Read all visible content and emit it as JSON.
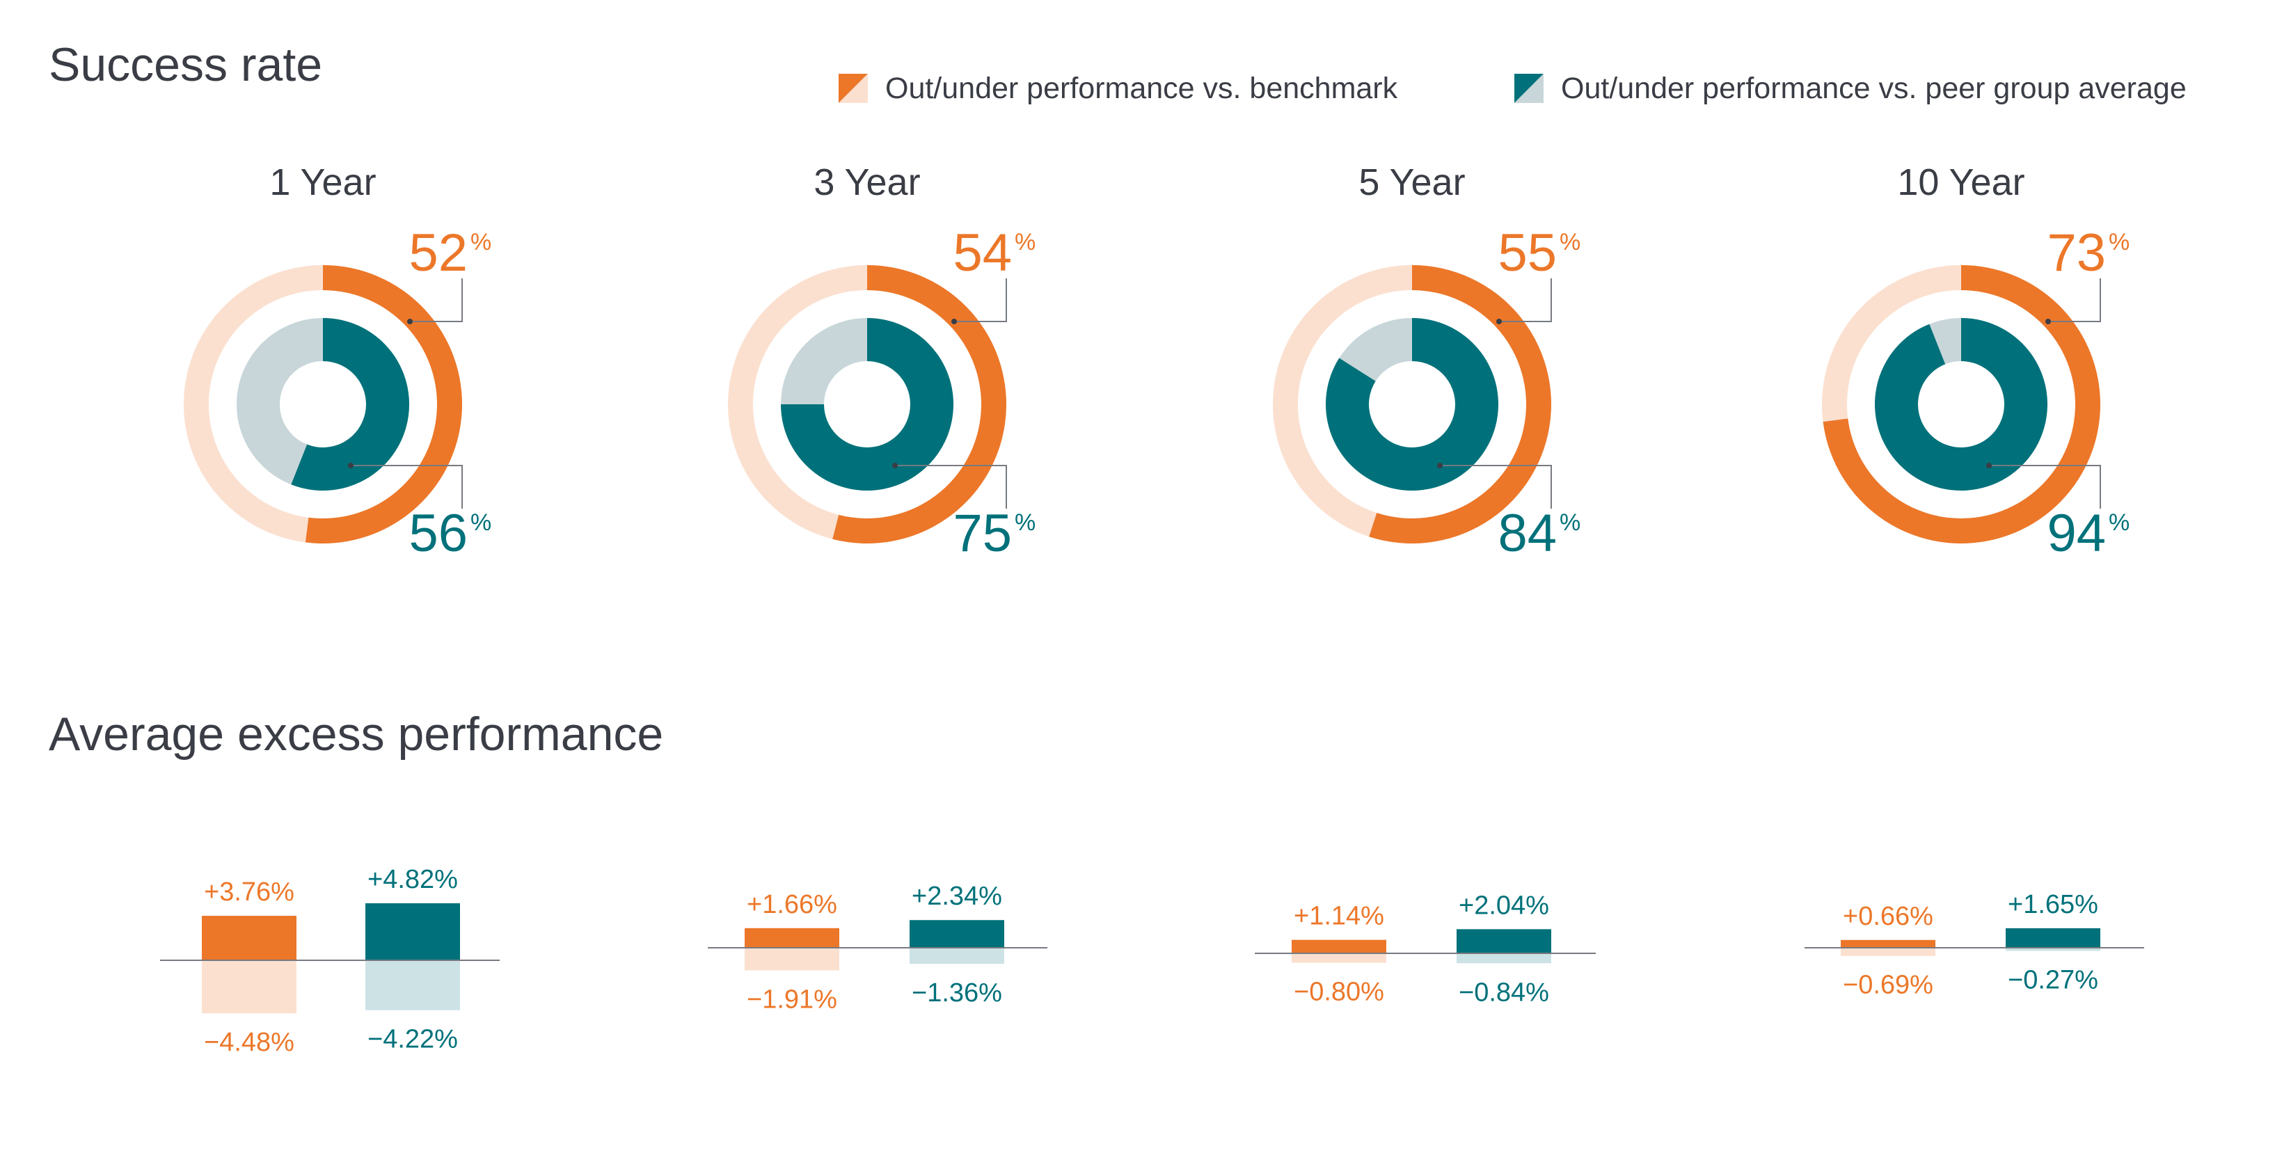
{
  "titles": {
    "success_rate": "Success rate",
    "average_excess": "Average excess performance"
  },
  "legend": {
    "benchmark": "Out/under performance vs. benchmark",
    "peer": "Out/under performance vs. peer group average"
  },
  "colors": {
    "orange": "#ec7729",
    "orange_light": "#fbe0d0",
    "teal": "#00717a",
    "teal_light": "#cde2e5",
    "ring_rest": "#c8d6da",
    "text": "#3a3d45",
    "axis": "#777a80"
  },
  "chart_data": [
    {
      "type": "pie",
      "style": "nested-donut",
      "title": "Success rate",
      "categories": [
        "1 Year",
        "3 Year",
        "5 Year",
        "10 Year"
      ],
      "series": [
        {
          "name": "Out/under performance vs. benchmark",
          "values": [
            52,
            54,
            55,
            73
          ]
        },
        {
          "name": "Out/under performance vs. peer group average",
          "values": [
            56,
            75,
            84,
            94
          ]
        }
      ],
      "unit": "%"
    },
    {
      "type": "bar",
      "title": "Average excess performance",
      "categories": [
        "1 Year",
        "3 Year",
        "5 Year",
        "10 Year"
      ],
      "series": [
        {
          "name": "Out/under performance vs. benchmark",
          "outperformance": [
            3.76,
            1.66,
            1.14,
            0.66
          ],
          "underperformance": [
            -4.48,
            -1.91,
            -0.8,
            -0.69
          ],
          "outperformance_labels": [
            "+3.76%",
            "+1.66%",
            "+1.14%",
            "+0.66%"
          ],
          "underperformance_labels": [
            "−4.48%",
            "−1.91%",
            "−0.80%",
            "−0.69%"
          ]
        },
        {
          "name": "Out/under performance vs. peer group average",
          "outperformance": [
            4.82,
            2.34,
            2.04,
            1.65
          ],
          "underperformance": [
            -4.22,
            -1.36,
            -0.84,
            -0.27
          ],
          "outperformance_labels": [
            "+4.82%",
            "+2.34%",
            "+2.04%",
            "+1.65%"
          ],
          "underperformance_labels": [
            "−4.22%",
            "−1.36%",
            "−0.84%",
            "−0.27%"
          ]
        }
      ],
      "unit": "%"
    }
  ]
}
